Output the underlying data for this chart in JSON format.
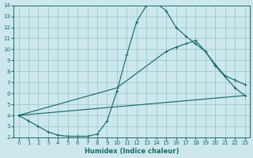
{
  "xlabel": "Humidex (Indice chaleur)",
  "bg_color": "#cce8ec",
  "grid_color": "#a0c8cc",
  "line_color": "#1a6b6b",
  "xlim": [
    -0.5,
    23.5
  ],
  "ylim": [
    2,
    14
  ],
  "xticks": [
    0,
    1,
    2,
    3,
    4,
    5,
    6,
    7,
    8,
    9,
    10,
    11,
    12,
    13,
    14,
    15,
    16,
    17,
    18,
    19,
    20,
    21,
    22,
    23
  ],
  "yticks": [
    2,
    3,
    4,
    5,
    6,
    7,
    8,
    9,
    10,
    11,
    12,
    13,
    14
  ],
  "line1_x": [
    0,
    1,
    2,
    3,
    4,
    5,
    6,
    7,
    8,
    9,
    10,
    11,
    12,
    13,
    14,
    15,
    16,
    17,
    18,
    19,
    20,
    21,
    22,
    23
  ],
  "line1_y": [
    4.0,
    3.5,
    3.0,
    2.5,
    2.2,
    2.1,
    2.1,
    2.1,
    2.3,
    3.5,
    6.2,
    9.5,
    12.5,
    14.0,
    14.2,
    13.5,
    12.0,
    11.2,
    10.5,
    9.8,
    8.5,
    7.5,
    6.5,
    5.8
  ],
  "line2_x": [
    0,
    10,
    15,
    16,
    17,
    18,
    19,
    20,
    21,
    22,
    23
  ],
  "line2_y": [
    4.0,
    6.5,
    9.8,
    10.2,
    10.5,
    10.8,
    9.8,
    8.6,
    7.6,
    7.2,
    6.8
  ],
  "line3_x": [
    0,
    23
  ],
  "line3_y": [
    4.0,
    5.8
  ]
}
